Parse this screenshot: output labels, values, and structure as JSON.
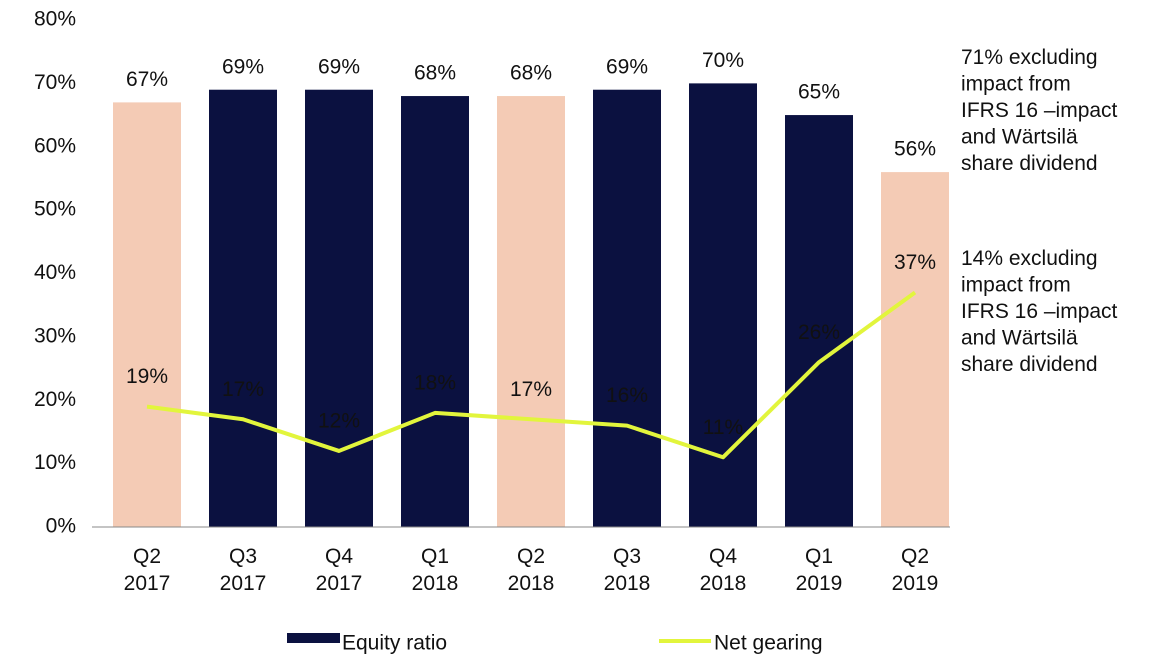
{
  "chart_data": {
    "type": "bar-line",
    "categories": [
      [
        "Q2",
        "2017"
      ],
      [
        "Q3",
        "2017"
      ],
      [
        "Q4",
        "2017"
      ],
      [
        "Q1",
        "2018"
      ],
      [
        "Q2",
        "2018"
      ],
      [
        "Q3",
        "2018"
      ],
      [
        "Q4",
        "2018"
      ],
      [
        "Q1",
        "2019"
      ],
      [
        "Q2",
        "2019"
      ]
    ],
    "series": [
      {
        "name": "Equity ratio",
        "type": "bar",
        "color": "#0b1140",
        "colors": [
          "#f4cbb5",
          "#0b1140",
          "#0b1140",
          "#0b1140",
          "#f4cbb5",
          "#0b1140",
          "#0b1140",
          "#0b1140",
          "#f4cbb5"
        ],
        "values": [
          67,
          69,
          69,
          68,
          68,
          69,
          70,
          65,
          56
        ],
        "value_labels": [
          "67%",
          "69%",
          "69%",
          "68%",
          "68%",
          "69%",
          "70%",
          "65%",
          "56%"
        ]
      },
      {
        "name": "Net gearing",
        "type": "line",
        "color": "#e2f53c",
        "values": [
          19,
          17,
          12,
          18,
          17,
          16,
          11,
          26,
          37
        ],
        "value_labels": [
          "19%",
          "17%",
          "12%",
          "18%",
          "17%",
          "16%",
          "11%",
          "26%",
          "37%"
        ]
      }
    ],
    "ylim": [
      0,
      80
    ],
    "yticks": [
      {
        "value": 0,
        "label": "0%"
      },
      {
        "value": 10,
        "label": "10%"
      },
      {
        "value": 20,
        "label": "20%"
      },
      {
        "value": 30,
        "label": "30%"
      },
      {
        "value": 40,
        "label": "40%"
      },
      {
        "value": 50,
        "label": "50%"
      },
      {
        "value": 60,
        "label": "60%"
      },
      {
        "value": 70,
        "label": "70%"
      },
      {
        "value": 80,
        "label": "80%"
      }
    ],
    "annotations": [
      [
        "71% excluding",
        "impact from",
        "IFRS 16 –impact",
        "and Wärtsilä",
        "share dividend"
      ],
      [
        "14% excluding",
        "impact from",
        "IFRS 16 –impact",
        "and Wärtsilä",
        "share dividend"
      ]
    ],
    "legend": "bottom",
    "grid": false
  }
}
